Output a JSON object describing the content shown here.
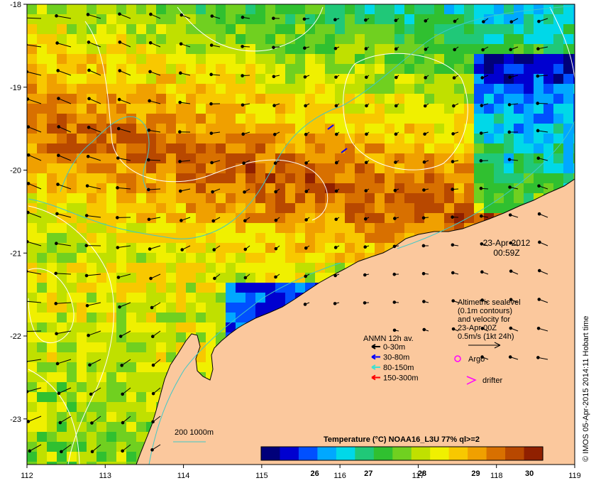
{
  "map": {
    "lon_ticks": [
      "112",
      "113",
      "114",
      "115",
      "116",
      "117",
      "118",
      "119"
    ],
    "lat_ticks": [
      "-18",
      "-19",
      "-20",
      "-21",
      "-22",
      "-23"
    ],
    "extent": {
      "lon": [
        112,
        119
      ],
      "lat": [
        -23.55,
        -18
      ]
    }
  },
  "timestamp": {
    "date": "23-Apr-2012",
    "time": "00:59Z"
  },
  "altimetry_note": [
    "Altimetric sealevel",
    "(0.1m contours)",
    "and velocity for",
    "23-Apr 00Z",
    "0.5m/s (1kt 24h)"
  ],
  "legend": {
    "title": "ANMN 12h av.",
    "items": [
      {
        "label": "0-30m",
        "color": "#000000"
      },
      {
        "label": "30-80m",
        "color": "#0000ff"
      },
      {
        "label": "80-150m",
        "color": "#40e0d0"
      },
      {
        "label": "150-300m",
        "color": "#ff0000"
      }
    ],
    "argo_label": "Argo",
    "argo_color": "#ff00ff",
    "drifter_label": "drifter",
    "drifter_color": "#ff00ff"
  },
  "bathy_legend": {
    "label": "200  1000m",
    "color": "#40c8c8"
  },
  "colorbar": {
    "title": "Temperature (°C) NOAA16_L3U 77% ql>=2",
    "min": 25,
    "max": 30.25,
    "ticks": [
      "26",
      "27",
      "28",
      "29",
      "30"
    ],
    "colors": [
      "#00007a",
      "#0000d0",
      "#0050ff",
      "#00a8ff",
      "#00d8e8",
      "#20c878",
      "#30c030",
      "#70d020",
      "#c0e000",
      "#f0f000",
      "#f8c800",
      "#f0a000",
      "#d87000",
      "#b84800",
      "#902000"
    ]
  },
  "credit": "© IMOS 05-Apr-2015 2014:11 Hobart time",
  "colors": {
    "land": "#fbc89d",
    "frame": "#000000",
    "contour": "#ffffff",
    "isobath": "#40c8c8"
  }
}
